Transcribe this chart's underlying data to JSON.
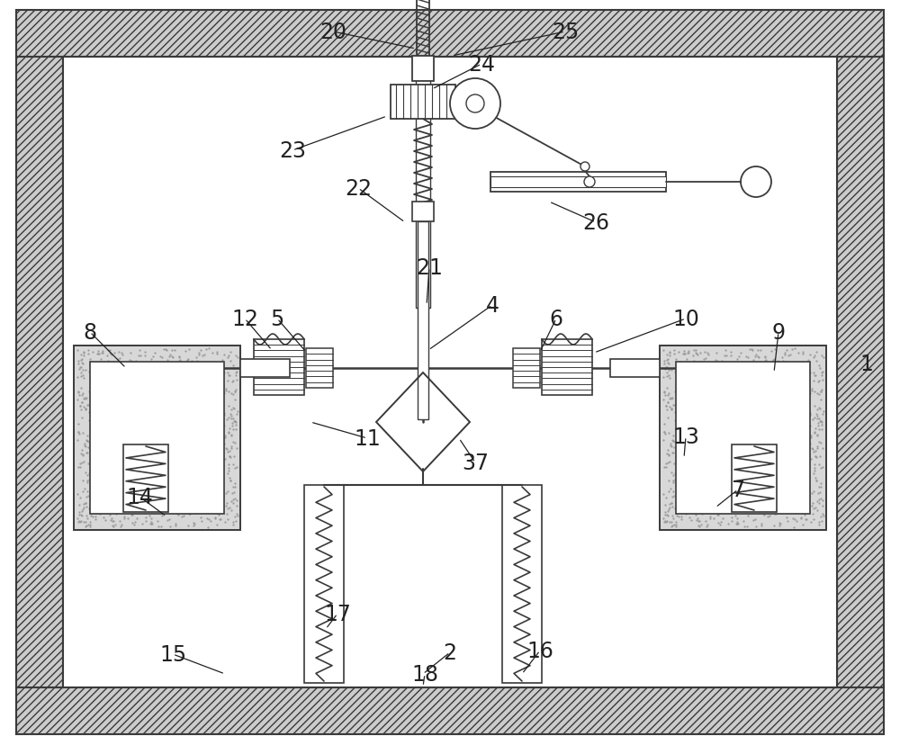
{
  "bg_color": "#ffffff",
  "line_color": "#3a3a3a",
  "fig_width": 10.0,
  "fig_height": 8.29,
  "dpi": 100
}
